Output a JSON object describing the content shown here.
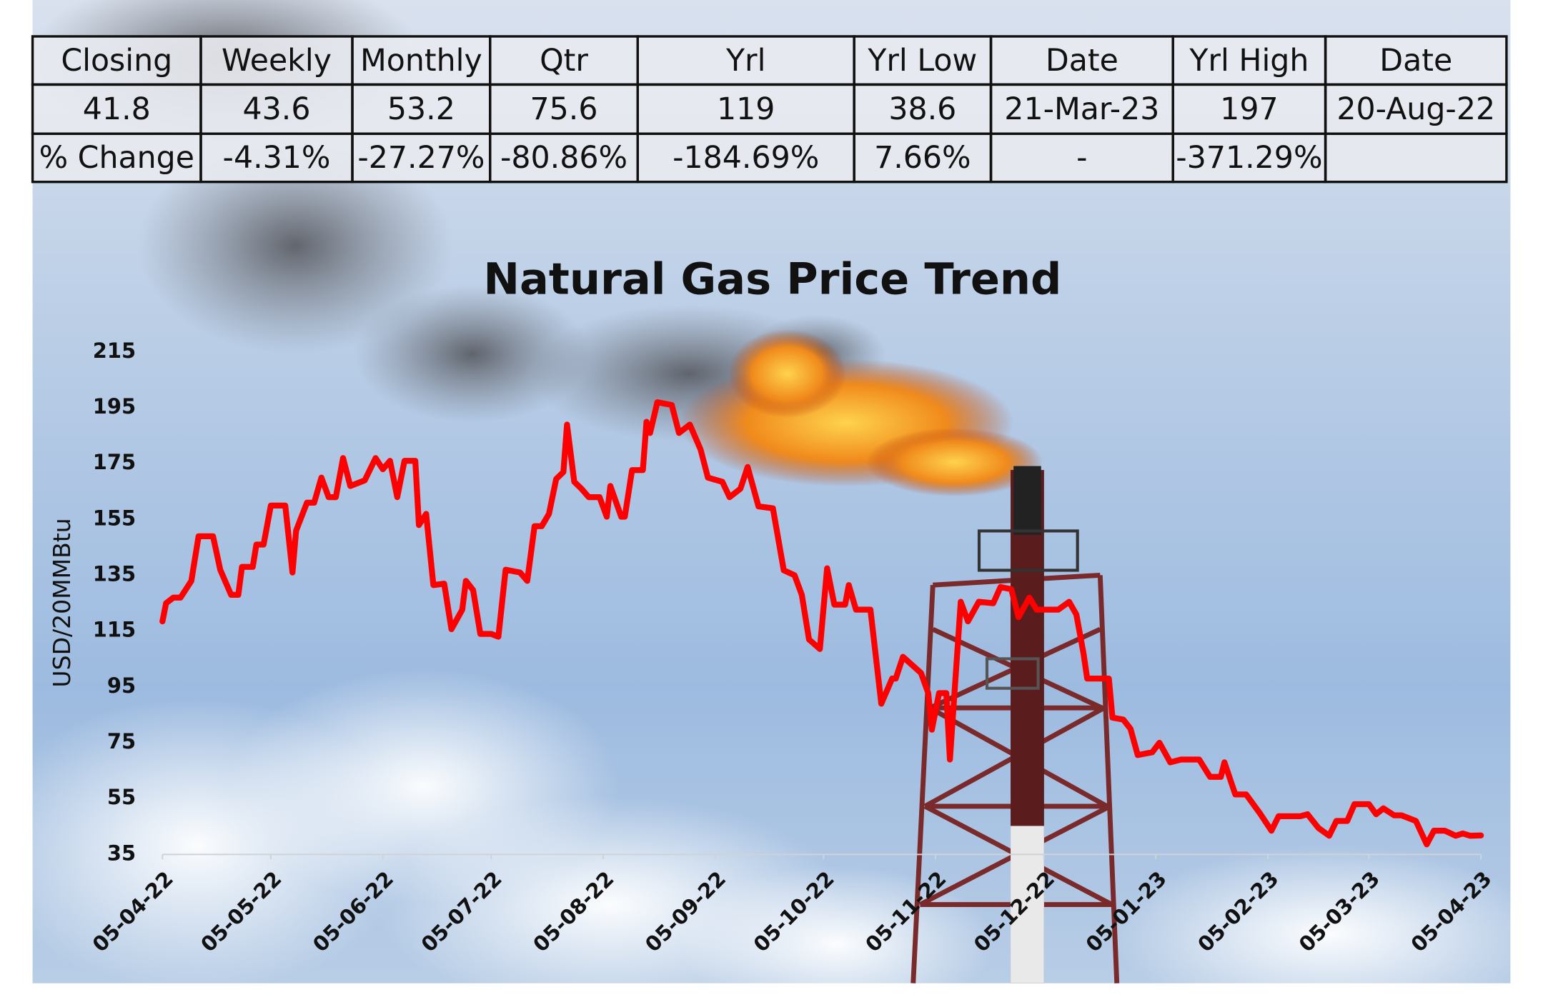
{
  "table": {
    "header": [
      "Closing",
      "Weekly",
      "Monthly",
      "Qtr",
      "Yrl",
      "Yrl Low",
      "Date",
      "Yrl High",
      "Date"
    ],
    "rows": [
      [
        "41.8",
        "43.6",
        "53.2",
        "75.6",
        "119",
        "38.6",
        "21-Mar-23",
        "197",
        "20-Aug-22"
      ],
      [
        "% Change",
        "-4.31%",
        "-27.27%",
        "-80.86%",
        "-184.69%",
        "7.66%",
        "-",
        "-371.29%"
      ]
    ]
  },
  "chart_data": {
    "type": "line",
    "title": "Natural Gas Price Trend",
    "y_label": "USD/20MMBtu",
    "xlim": [
      "2022-04-05",
      "2023-04-05"
    ],
    "xticks": [
      {
        "value": "2022-04-05",
        "label": "05-04-22"
      },
      {
        "value": "2022-05-05",
        "label": "05-05-22"
      },
      {
        "value": "2022-06-05",
        "label": "05-06-22"
      },
      {
        "value": "2022-07-05",
        "label": "05-07-22"
      },
      {
        "value": "2022-08-05",
        "label": "05-08-22"
      },
      {
        "value": "2022-09-05",
        "label": "05-09-22"
      },
      {
        "value": "2022-10-05",
        "label": "05-10-22"
      },
      {
        "value": "2022-11-05",
        "label": "05-11-22"
      },
      {
        "value": "2022-12-05",
        "label": "05-12-22"
      },
      {
        "value": "2023-01-05",
        "label": "05-01-23"
      },
      {
        "value": "2023-02-05",
        "label": "05-02-23"
      },
      {
        "value": "2023-03-05",
        "label": "05-03-23"
      },
      {
        "value": "2023-04-05",
        "label": "05-04-23"
      }
    ],
    "ylim": [
      35,
      215
    ],
    "yticks": [
      35,
      55,
      75,
      95,
      115,
      135,
      155,
      175,
      195,
      215
    ],
    "grid": false,
    "x": [
      "2022-04-05",
      "2022-04-06",
      "2022-04-08",
      "2022-04-10",
      "2022-04-13",
      "2022-04-15",
      "2022-04-19",
      "2022-04-21",
      "2022-04-24",
      "2022-04-26",
      "2022-04-27",
      "2022-04-30",
      "2022-05-01",
      "2022-05-03",
      "2022-05-05",
      "2022-05-09",
      "2022-05-11",
      "2022-05-12",
      "2022-05-15",
      "2022-05-17",
      "2022-05-19",
      "2022-05-21",
      "2022-05-23",
      "2022-05-25",
      "2022-05-27",
      "2022-05-31",
      "2022-06-03",
      "2022-06-05",
      "2022-06-07",
      "2022-06-09",
      "2022-06-11",
      "2022-06-14",
      "2022-06-15",
      "2022-06-17",
      "2022-06-19",
      "2022-06-22",
      "2022-06-24",
      "2022-06-27",
      "2022-06-28",
      "2022-06-30",
      "2022-07-02",
      "2022-07-05",
      "2022-07-07",
      "2022-07-09",
      "2022-07-13",
      "2022-07-15",
      "2022-07-17",
      "2022-07-19",
      "2022-07-21",
      "2022-07-23",
      "2022-07-25",
      "2022-07-26",
      "2022-07-28",
      "2022-07-30",
      "2022-08-01",
      "2022-08-04",
      "2022-08-06",
      "2022-08-07",
      "2022-08-10",
      "2022-08-11",
      "2022-08-13",
      "2022-08-16",
      "2022-08-17",
      "2022-08-18",
      "2022-08-20",
      "2022-08-24",
      "2022-08-26",
      "2022-08-29",
      "2022-09-01",
      "2022-09-03",
      "2022-09-07",
      "2022-09-09",
      "2022-09-12",
      "2022-09-14",
      "2022-09-17",
      "2022-09-21",
      "2022-09-24",
      "2022-09-27",
      "2022-09-29",
      "2022-10-01",
      "2022-10-04",
      "2022-10-06",
      "2022-10-08",
      "2022-10-11",
      "2022-10-12",
      "2022-10-14",
      "2022-10-18",
      "2022-10-21",
      "2022-10-24",
      "2022-10-25",
      "2022-10-27",
      "2022-11-01",
      "2022-11-03",
      "2022-11-04",
      "2022-11-06",
      "2022-11-08",
      "2022-11-09",
      "2022-11-12",
      "2022-11-14",
      "2022-11-17",
      "2022-11-21",
      "2022-11-23",
      "2022-11-26",
      "2022-11-28",
      "2022-12-01",
      "2022-12-03",
      "2022-12-09",
      "2022-12-12",
      "2022-12-14",
      "2022-12-16",
      "2022-12-17",
      "2022-12-23",
      "2022-12-24",
      "2022-12-27",
      "2022-12-29",
      "2022-12-31",
      "2023-01-04",
      "2023-01-06",
      "2023-01-09",
      "2023-01-12",
      "2023-01-17",
      "2023-01-20",
      "2023-01-23",
      "2023-01-24",
      "2023-01-27",
      "2023-01-30",
      "2023-02-03",
      "2023-02-06",
      "2023-02-08",
      "2023-02-14",
      "2023-02-16",
      "2023-02-19",
      "2023-02-22",
      "2023-02-24",
      "2023-02-27",
      "2023-03-01",
      "2023-03-05",
      "2023-03-07",
      "2023-03-09",
      "2023-03-12",
      "2023-03-14",
      "2023-03-18",
      "2023-03-21",
      "2023-03-23",
      "2023-03-26",
      "2023-03-29",
      "2023-03-31",
      "2023-04-02",
      "2023-04-05"
    ],
    "series": [
      {
        "name": "Natural Gas Price",
        "color": "#ff0000",
        "values": [
          118.5,
          125,
          127,
          127,
          133,
          149,
          149,
          137,
          128,
          128,
          138,
          138,
          146,
          146,
          160,
          160,
          136,
          151,
          161,
          161,
          170,
          163,
          163,
          177,
          167,
          169,
          177,
          173,
          176,
          163,
          176,
          176,
          153,
          157,
          131.5,
          132,
          115.7,
          122.7,
          133,
          129.7,
          114,
          114,
          113,
          137,
          136,
          133,
          152.6,
          152.6,
          157,
          169.5,
          172,
          189,
          168.5,
          166,
          163,
          163,
          156,
          167,
          156,
          156,
          172.7,
          172.7,
          190,
          186,
          197,
          196,
          186,
          189,
          180,
          170,
          168.5,
          163,
          166,
          173.8,
          159.7,
          159,
          136.8,
          135,
          128,
          112,
          108.6,
          137.5,
          124.5,
          124.5,
          131.5,
          122.7,
          122.7,
          89,
          98,
          98,
          105.8,
          100,
          92.8,
          79.7,
          92.8,
          92.8,
          69,
          125.5,
          118.5,
          125.5,
          125,
          130.8,
          130,
          120,
          127,
          122.7,
          122.7,
          125.5,
          121,
          106.9,
          98,
          98,
          84,
          83.3,
          80,
          70.6,
          71.6,
          75,
          68,
          69,
          69,
          62.8,
          62.8,
          68,
          56.5,
          56.5,
          49.4,
          43.5,
          48.7,
          48.7,
          49.4,
          44.5,
          41.7,
          47,
          47,
          53,
          53,
          49.4,
          51.5,
          49,
          49,
          47,
          38.6,
          43.5,
          43.5,
          41.7,
          42.5,
          41.7,
          41.8
        ]
      }
    ]
  }
}
